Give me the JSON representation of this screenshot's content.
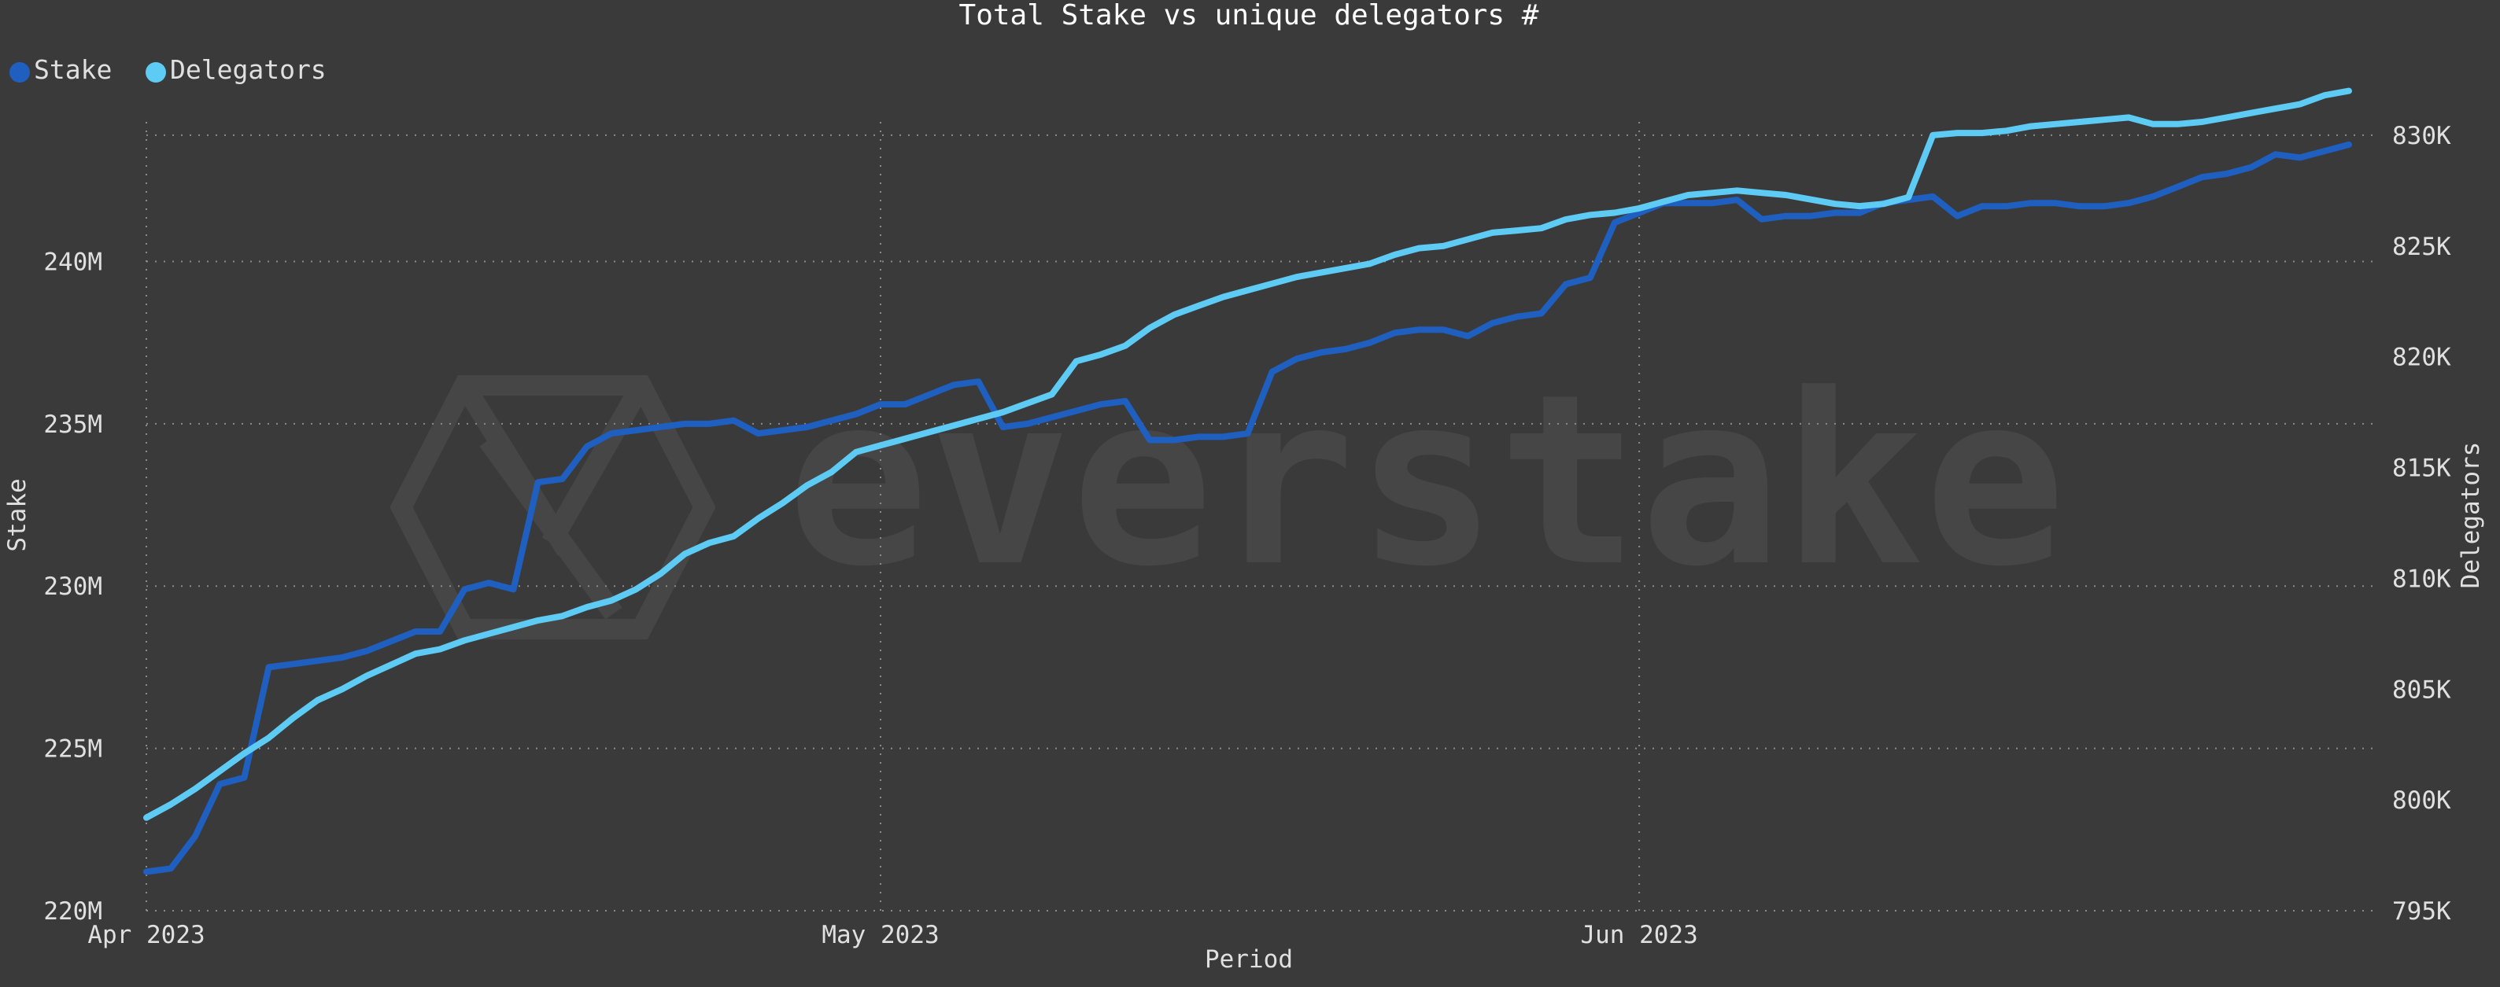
{
  "colors": {
    "background": "#3a3a3a",
    "stake": "#1f5fbf",
    "delegators": "#5ecbf5",
    "text": "#e0e0e0",
    "grid": "#8a8a8a",
    "watermark": "#464646"
  },
  "watermark": {
    "text": "everstake",
    "icon": "hexagon-logo-icon"
  },
  "chart_data": {
    "type": "line",
    "title": "Total Stake vs unique delegators #",
    "xlabel": "Period",
    "ylabel_left": "Stake",
    "ylabel_right": "Delegators",
    "legend_position": "top-left",
    "grid": true,
    "x_ticks": [
      "Apr 2023",
      "May 2023",
      "Jun 2023"
    ],
    "x_tick_dates": [
      "2023-04-01",
      "2023-05-01",
      "2023-06-01"
    ],
    "xlim": [
      "2023-04-01",
      "2023-06-30"
    ],
    "y_left_ticks": [
      "220M",
      "225M",
      "230M",
      "235M",
      "240M"
    ],
    "y_left_tick_values": [
      220,
      225,
      230,
      235,
      240
    ],
    "y_left_lim": [
      220,
      244.3
    ],
    "y_right_ticks": [
      "795K",
      "800K",
      "805K",
      "810K",
      "815K",
      "820K",
      "825K",
      "830K"
    ],
    "y_right_tick_values": [
      795,
      800,
      805,
      810,
      815,
      820,
      825,
      830
    ],
    "y_right_lim": [
      795,
      830.6
    ],
    "series": [
      {
        "name": "Stake",
        "axis": "left",
        "unit": "M",
        "x": [
          "2023-04-01",
          "2023-04-02",
          "2023-04-03",
          "2023-04-04",
          "2023-04-05",
          "2023-04-06",
          "2023-04-07",
          "2023-04-08",
          "2023-04-09",
          "2023-04-10",
          "2023-04-11",
          "2023-04-12",
          "2023-04-13",
          "2023-04-14",
          "2023-04-15",
          "2023-04-16",
          "2023-04-17",
          "2023-04-18",
          "2023-04-19",
          "2023-04-20",
          "2023-04-21",
          "2023-04-22",
          "2023-04-23",
          "2023-04-24",
          "2023-04-25",
          "2023-04-26",
          "2023-04-27",
          "2023-04-28",
          "2023-04-29",
          "2023-04-30",
          "2023-05-01",
          "2023-05-02",
          "2023-05-03",
          "2023-05-04",
          "2023-05-05",
          "2023-05-06",
          "2023-05-07",
          "2023-05-08",
          "2023-05-09",
          "2023-05-10",
          "2023-05-11",
          "2023-05-12",
          "2023-05-13",
          "2023-05-14",
          "2023-05-15",
          "2023-05-16",
          "2023-05-17",
          "2023-05-18",
          "2023-05-19",
          "2023-05-20",
          "2023-05-21",
          "2023-05-22",
          "2023-05-23",
          "2023-05-24",
          "2023-05-25",
          "2023-05-26",
          "2023-05-27",
          "2023-05-28",
          "2023-05-29",
          "2023-05-30",
          "2023-05-31",
          "2023-06-01",
          "2023-06-02",
          "2023-06-03",
          "2023-06-04",
          "2023-06-05",
          "2023-06-06",
          "2023-06-07",
          "2023-06-08",
          "2023-06-09",
          "2023-06-10",
          "2023-06-11",
          "2023-06-12",
          "2023-06-13",
          "2023-06-14",
          "2023-06-15",
          "2023-06-16",
          "2023-06-17",
          "2023-06-18",
          "2023-06-19",
          "2023-06-20",
          "2023-06-21",
          "2023-06-22",
          "2023-06-23",
          "2023-06-24",
          "2023-06-25",
          "2023-06-26",
          "2023-06-27",
          "2023-06-28",
          "2023-06-29",
          "2023-06-30"
        ],
        "values": [
          221.2,
          221.3,
          222.3,
          223.9,
          224.1,
          227.5,
          227.6,
          227.7,
          227.8,
          228.0,
          228.3,
          228.6,
          228.6,
          229.9,
          230.1,
          229.9,
          233.2,
          233.3,
          234.3,
          234.7,
          234.8,
          234.9,
          235.0,
          235.0,
          235.1,
          234.7,
          234.8,
          234.9,
          235.1,
          235.3,
          235.6,
          235.6,
          235.9,
          236.2,
          236.3,
          234.9,
          235.0,
          235.2,
          235.4,
          235.6,
          235.7,
          234.5,
          234.5,
          234.6,
          234.6,
          234.7,
          236.6,
          237.0,
          237.2,
          237.3,
          237.5,
          237.8,
          237.9,
          237.9,
          237.7,
          238.1,
          238.3,
          238.4,
          239.3,
          239.5,
          241.2,
          241.5,
          241.8,
          241.8,
          241.8,
          241.9,
          241.3,
          241.4,
          241.4,
          241.5,
          241.5,
          241.8,
          241.9,
          242.0,
          241.4,
          241.7,
          241.7,
          241.8,
          241.8,
          241.7,
          241.7,
          241.8,
          242.0,
          242.3,
          242.6,
          242.7,
          242.9,
          243.3,
          243.2,
          243.4,
          243.6
        ]
      },
      {
        "name": "Delegators",
        "axis": "right",
        "unit": "K",
        "x": [
          "2023-04-01",
          "2023-04-02",
          "2023-04-03",
          "2023-04-04",
          "2023-04-05",
          "2023-04-06",
          "2023-04-07",
          "2023-04-08",
          "2023-04-09",
          "2023-04-10",
          "2023-04-11",
          "2023-04-12",
          "2023-04-13",
          "2023-04-14",
          "2023-04-15",
          "2023-04-16",
          "2023-04-17",
          "2023-04-18",
          "2023-04-19",
          "2023-04-20",
          "2023-04-21",
          "2023-04-22",
          "2023-04-23",
          "2023-04-24",
          "2023-04-25",
          "2023-04-26",
          "2023-04-27",
          "2023-04-28",
          "2023-04-29",
          "2023-04-30",
          "2023-05-01",
          "2023-05-02",
          "2023-05-03",
          "2023-05-04",
          "2023-05-05",
          "2023-05-06",
          "2023-05-07",
          "2023-05-08",
          "2023-05-09",
          "2023-05-10",
          "2023-05-11",
          "2023-05-12",
          "2023-05-13",
          "2023-05-14",
          "2023-05-15",
          "2023-05-16",
          "2023-05-17",
          "2023-05-18",
          "2023-05-19",
          "2023-05-20",
          "2023-05-21",
          "2023-05-22",
          "2023-05-23",
          "2023-05-24",
          "2023-05-25",
          "2023-05-26",
          "2023-05-27",
          "2023-05-28",
          "2023-05-29",
          "2023-05-30",
          "2023-05-31",
          "2023-06-01",
          "2023-06-02",
          "2023-06-03",
          "2023-06-04",
          "2023-06-05",
          "2023-06-06",
          "2023-06-07",
          "2023-06-08",
          "2023-06-09",
          "2023-06-10",
          "2023-06-11",
          "2023-06-12",
          "2023-06-13",
          "2023-06-14",
          "2023-06-15",
          "2023-06-16",
          "2023-06-17",
          "2023-06-18",
          "2023-06-19",
          "2023-06-20",
          "2023-06-21",
          "2023-06-22",
          "2023-06-23",
          "2023-06-24",
          "2023-06-25",
          "2023-06-26",
          "2023-06-27",
          "2023-06-28",
          "2023-06-29",
          "2023-06-30"
        ],
        "values": [
          799.2,
          799.8,
          800.5,
          801.3,
          802.1,
          802.8,
          803.7,
          804.5,
          805.0,
          805.6,
          806.1,
          806.6,
          806.8,
          807.2,
          807.5,
          807.8,
          808.1,
          808.3,
          808.7,
          809.0,
          809.5,
          810.2,
          811.1,
          811.6,
          811.9,
          812.7,
          813.4,
          814.2,
          814.8,
          815.7,
          816.0,
          816.3,
          816.6,
          816.9,
          817.2,
          817.5,
          817.9,
          818.3,
          819.8,
          820.1,
          820.5,
          821.3,
          821.9,
          822.3,
          822.7,
          823.0,
          823.3,
          823.6,
          823.8,
          824.0,
          824.2,
          824.6,
          824.9,
          825.0,
          825.3,
          825.6,
          825.7,
          825.8,
          826.2,
          826.4,
          826.5,
          826.7,
          827.0,
          827.3,
          827.4,
          827.5,
          827.4,
          827.3,
          827.1,
          826.9,
          826.8,
          826.9,
          827.2,
          830.0,
          830.1,
          830.1,
          830.2,
          830.4,
          830.5,
          830.6,
          830.7,
          830.8,
          830.5,
          830.5,
          830.6,
          830.8,
          831.0,
          831.2,
          831.4,
          831.8,
          832.0
        ]
      }
    ]
  }
}
